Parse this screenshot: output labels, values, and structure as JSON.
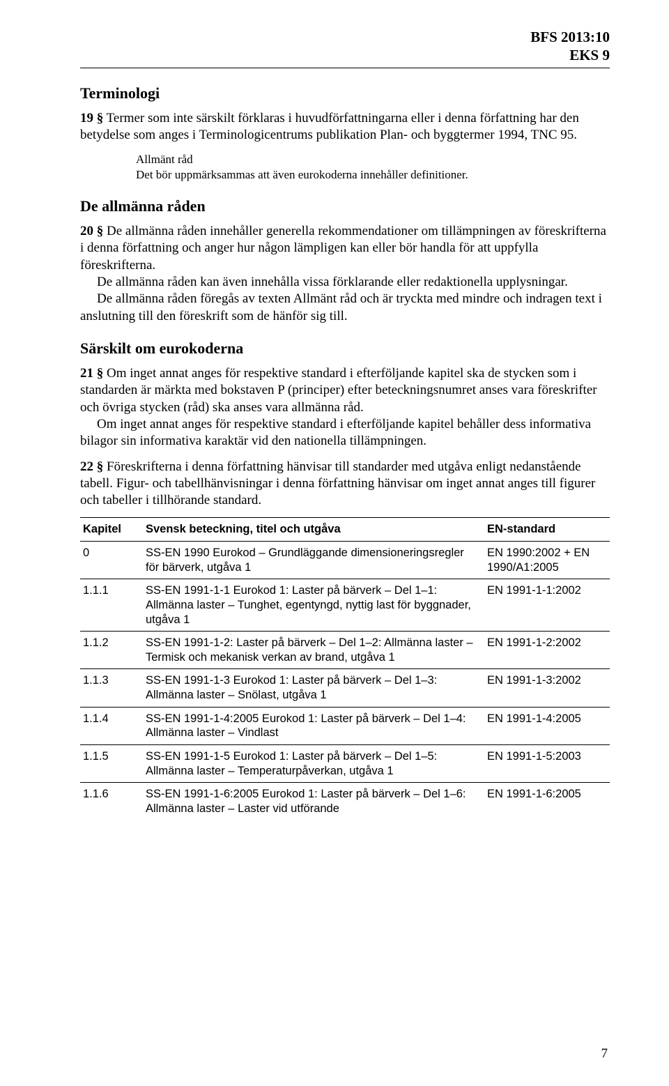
{
  "header": {
    "line1": "BFS 2013:10",
    "line2": "EKS 9"
  },
  "sections": {
    "terminologi": {
      "heading": "Terminologi",
      "p19_lead": "19 §",
      "p19_text": "   Termer som inte särskilt förklaras i huvudförfattningarna eller i denna för­fattning har den betydelse som anges i Terminologicentrums publikation Plan- och byggtermer 1994, TNC 95.",
      "advice_title": "Allmänt råd",
      "advice_text": "Det bör uppmärksammas att även eurokoderna innehåller definitioner."
    },
    "allmanna": {
      "heading": "De allmänna råden",
      "p20_lead": "20 §",
      "p20_text": "   De allmänna råden innehåller generella rekommendationer om tillämp­ningen av föreskrifterna i denna författning och anger hur någon lämpligen kan eller bör handla för att uppfylla föreskrifterna.",
      "p20_cont1": "De allmänna råden kan även innehålla vissa förklarande eller redaktionella upplysningar.",
      "p20_cont2": "De allmänna råden föregås av texten Allmänt råd och är tryckta med mindre och indragen text i anslutning till den föreskrift som de hänför sig till."
    },
    "sarksilt": {
      "heading": "Särskilt om eurokoderna",
      "p21_lead": "21 §",
      "p21_text": "   Om inget annat anges för respektive standard i efterföljande kapitel ska de stycken som i standarden är märkta med bokstaven P (principer) efter beteck­ningsnumret anses vara föreskrifter och övriga stycken (råd) ska anses vara allmänna råd.",
      "p21_cont": "Om inget annat anges för respektive standard i efterföljande kapitel behåller dess informativa bilagor sin informativa karaktär vid den nationella tillämpningen.",
      "p22_lead": "22 §",
      "p22_text": "   Föreskrifterna i denna författning hänvisar till standarder med utgåva enligt nedanstående tabell. Figur- och tabellhänvisningar i denna författning hänvisar om inget annat anges till figurer och tabeller i tillhörande standard."
    }
  },
  "table": {
    "headers": {
      "c1": "Kapitel",
      "c2": "Svensk beteckning, titel och utgåva",
      "c3": "EN-standard"
    },
    "rows": [
      {
        "kap": "0",
        "title": "SS-EN 1990 Eurokod – Grundläggande dimensioneringsregler för bärverk, utgåva 1",
        "en": "EN 1990:2002 + EN 1990/A1:2005"
      },
      {
        "kap": "1.1.1",
        "title": "SS-EN 1991-1-1 Eurokod 1: Laster på bärverk – Del 1–1: Allmänna laster – Tunghet, egen­tyngd, nyttig last för byggnader, utgåva 1",
        "en": "EN 1991-1-1:2002"
      },
      {
        "kap": "1.1.2",
        "title": "SS-EN 1991-1-2: Laster på bärverk – Del 1–2: Allmänna laster – Termisk och mekanisk verkan av brand, utgåva 1",
        "en": "EN 1991-1-2:2002"
      },
      {
        "kap": "1.1.3",
        "title": "SS-EN 1991-1-3 Eurokod 1: Laster på bärverk – Del 1–3: Allmänna laster – Snölast, utgåva 1",
        "en": "EN 1991-1-3:2002"
      },
      {
        "kap": "1.1.4",
        "title": "SS-EN 1991-1-4:2005 Eurokod 1: Laster på bärverk – Del 1–4: Allmänna laster – Vindlast",
        "en": "EN 1991-1-4:2005"
      },
      {
        "kap": "1.1.5",
        "title": "SS-EN 1991-1-5 Eurokod 1: Laster på bärverk – Del 1–5: Allmänna laster – Temperatur­påverkan, utgåva 1",
        "en": "EN 1991-1-5:2003"
      },
      {
        "kap": "1.1.6",
        "title": "SS-EN 1991-1-6:2005 Eurokod 1: Laster på bärverk – Del 1–6: Allmänna laster – Laster vid utförande",
        "en": "EN 1991-1-6:2005"
      }
    ]
  },
  "page_number": "7"
}
